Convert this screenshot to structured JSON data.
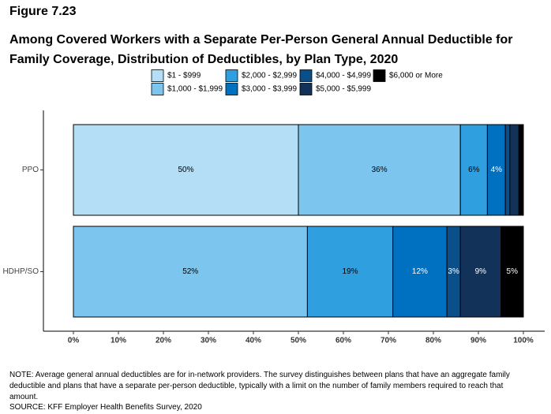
{
  "chart_data": {
    "type": "stacked-bar-horizontal",
    "figure_label": "Figure 7.23",
    "title": "Among Covered Workers with a Separate Per-Person General Annual Deductible for Family Coverage, Distribution of Deductibles, by Plan Type, 2020",
    "categories": [
      "PPO",
      "HDHP/SO"
    ],
    "series": [
      {
        "name": "$1 - $999",
        "color": "#b3def5",
        "values": [
          50,
          0
        ],
        "value_labels": [
          "50%",
          null
        ]
      },
      {
        "name": "$1,000 - $1,999",
        "color": "#7cc5ef",
        "values": [
          36,
          52
        ],
        "value_labels": [
          "36%",
          "52%"
        ]
      },
      {
        "name": "$2,000 - $2,999",
        "color": "#2f9fe0",
        "values": [
          6,
          19
        ],
        "value_labels": [
          "6%",
          "19%"
        ]
      },
      {
        "name": "$3,000 - $3,999",
        "color": "#0070c0",
        "values": [
          4,
          12
        ],
        "value_labels": [
          "4%",
          "12%"
        ]
      },
      {
        "name": "$4,000 - $4,999",
        "color": "#0b4f8a",
        "values": [
          1,
          3
        ],
        "value_labels": [
          null,
          "3%"
        ]
      },
      {
        "name": "$5,000 - $5,999",
        "color": "#13325a",
        "values": [
          2,
          9
        ],
        "value_labels": [
          null,
          "9%"
        ]
      },
      {
        "name": "$6,000 or More",
        "color": "#000000",
        "values": [
          1,
          5
        ],
        "value_labels": [
          null,
          "5%"
        ]
      }
    ],
    "xlim": [
      0,
      100
    ],
    "xticks": [
      {
        "value": 0,
        "label": "0%"
      },
      {
        "value": 10,
        "label": "10%"
      },
      {
        "value": 20,
        "label": "20%"
      },
      {
        "value": 30,
        "label": "30%"
      },
      {
        "value": 40,
        "label": "40%"
      },
      {
        "value": 50,
        "label": "50%"
      },
      {
        "value": 60,
        "label": "60%"
      },
      {
        "value": 70,
        "label": "70%"
      },
      {
        "value": 80,
        "label": "80%"
      },
      {
        "value": 90,
        "label": "90%"
      },
      {
        "value": 100,
        "label": "100%"
      }
    ],
    "note": "NOTE: Average general annual deductibles are for in-network providers. The survey distinguishes between plans that have an aggregate family deductible and plans that have a separate per-person deductible, typically with a limit on the number of family members required to reach that amount.",
    "source": "SOURCE: KFF Employer Health Benefits Survey, 2020"
  }
}
